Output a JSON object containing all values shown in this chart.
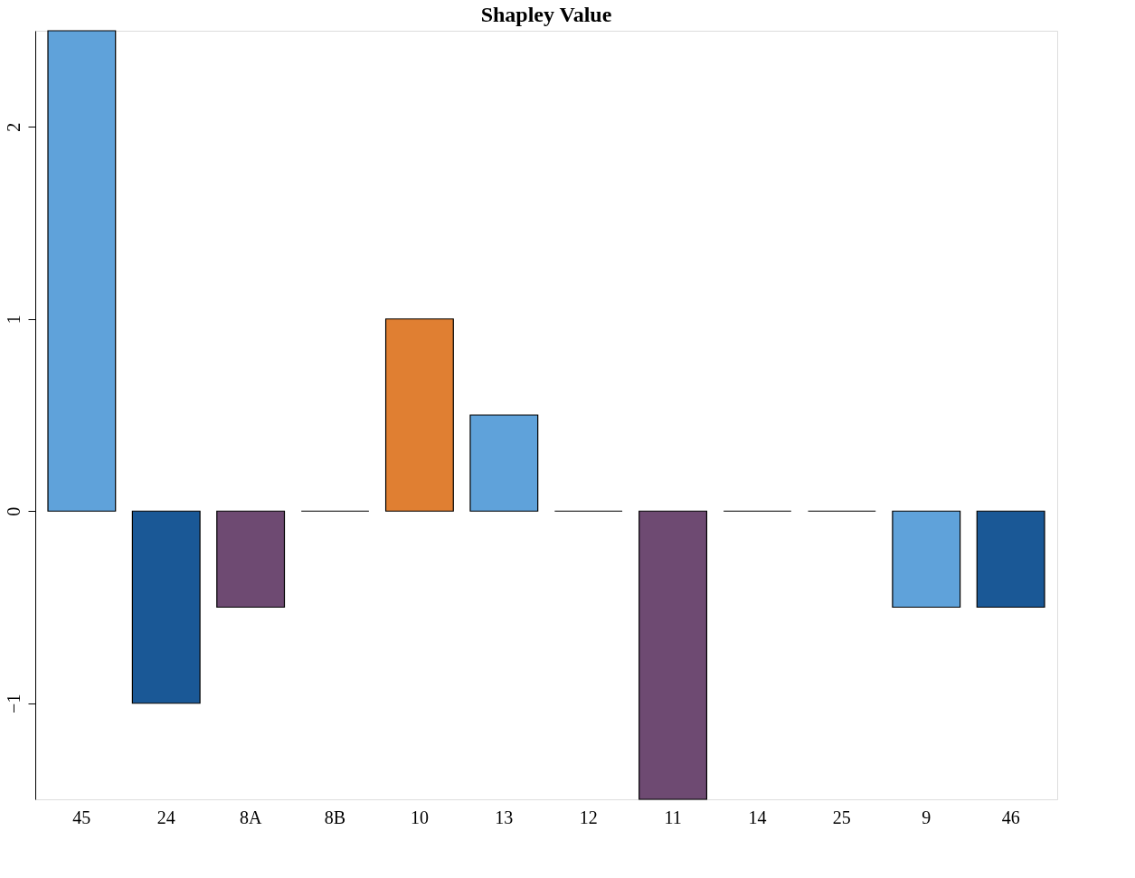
{
  "chart_data": {
    "type": "bar",
    "title": "Shapley Value",
    "categories": [
      "45",
      "24",
      "8A",
      "8B",
      "10",
      "13",
      "12",
      "11",
      "14",
      "25",
      "9",
      "46"
    ],
    "values": [
      2.5,
      -1,
      -0.5,
      0,
      1,
      0.5,
      0,
      -1.5,
      0,
      0,
      -0.5,
      -0.5
    ],
    "colors": [
      "#5fa2da",
      "#1a5896",
      "#6e4a72",
      "#000000",
      "#e07f32",
      "#5fa2da",
      "#000000",
      "#6e4a72",
      "#000000",
      "#000000",
      "#5fa2da",
      "#1a5896"
    ],
    "ylim": [
      -1.5,
      2.5
    ],
    "yticks": [
      -1,
      0,
      1,
      2
    ],
    "grid": false
  }
}
